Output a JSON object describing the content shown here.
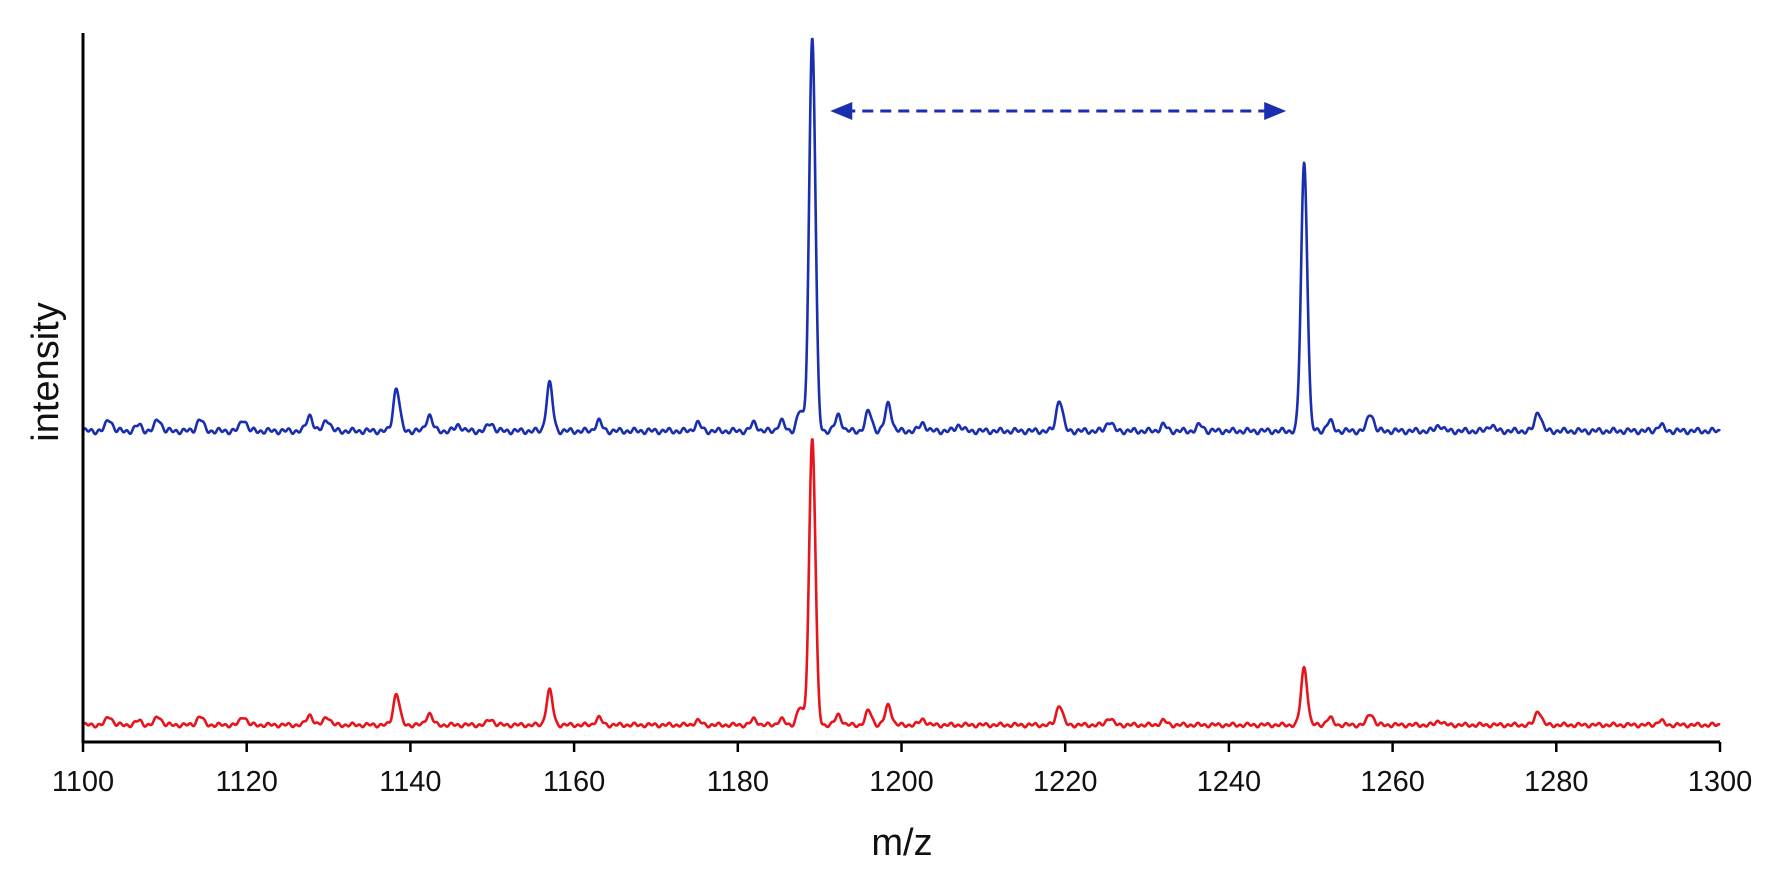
{
  "chart_data": {
    "type": "line",
    "title": "",
    "xlabel": "m/z",
    "ylabel": "intensity",
    "xlim": [
      1100,
      1300
    ],
    "x_ticks": [
      1100,
      1120,
      1140,
      1160,
      1180,
      1200,
      1220,
      1240,
      1260,
      1280,
      1300
    ],
    "y_ticks_shown": false,
    "grid": false,
    "legend": "none",
    "series": [
      {
        "color": "#1a2fb0",
        "baseline": 0,
        "peaks": [
          {
            "x": 1103.2,
            "y": 3
          },
          {
            "x": 1106.8,
            "y": 1.5
          },
          {
            "x": 1109.2,
            "y": 3
          },
          {
            "x": 1114.3,
            "y": 3
          },
          {
            "x": 1119.6,
            "y": 3
          },
          {
            "x": 1127.7,
            "y": 4
          },
          {
            "x": 1129.8,
            "y": 3
          },
          {
            "x": 1138.3,
            "y": 11
          },
          {
            "x": 1142.3,
            "y": 4
          },
          {
            "x": 1145.9,
            "y": 1.5
          },
          {
            "x": 1149.8,
            "y": 2
          },
          {
            "x": 1157.0,
            "y": 12
          },
          {
            "x": 1163.0,
            "y": 2.5
          },
          {
            "x": 1175.1,
            "y": 2
          },
          {
            "x": 1182.0,
            "y": 2
          },
          {
            "x": 1185.3,
            "y": 2.5
          },
          {
            "x": 1187.6,
            "y": 5
          },
          {
            "x": 1189.1,
            "y": 100
          },
          {
            "x": 1192.3,
            "y": 4
          },
          {
            "x": 1196.0,
            "y": 5
          },
          {
            "x": 1198.4,
            "y": 7
          },
          {
            "x": 1202.6,
            "y": 2
          },
          {
            "x": 1207.0,
            "y": 1.5
          },
          {
            "x": 1219.3,
            "y": 8
          },
          {
            "x": 1225.4,
            "y": 2.5
          },
          {
            "x": 1232.0,
            "y": 1.5
          },
          {
            "x": 1236.5,
            "y": 1.5
          },
          {
            "x": 1249.2,
            "y": 68
          },
          {
            "x": 1252.3,
            "y": 2.5
          },
          {
            "x": 1257.3,
            "y": 4.5
          },
          {
            "x": 1265.7,
            "y": 1.5
          },
          {
            "x": 1272.0,
            "y": 1.5
          },
          {
            "x": 1277.8,
            "y": 5
          },
          {
            "x": 1292.7,
            "y": 1.5
          }
        ]
      },
      {
        "color": "#e8141c",
        "baseline": 0,
        "peaks": [
          {
            "x": 1103.2,
            "y": 3
          },
          {
            "x": 1106.8,
            "y": 1.5
          },
          {
            "x": 1109.2,
            "y": 3
          },
          {
            "x": 1114.3,
            "y": 3
          },
          {
            "x": 1119.6,
            "y": 3
          },
          {
            "x": 1127.7,
            "y": 3.5
          },
          {
            "x": 1129.8,
            "y": 3
          },
          {
            "x": 1138.3,
            "y": 11
          },
          {
            "x": 1142.3,
            "y": 4
          },
          {
            "x": 1149.8,
            "y": 2
          },
          {
            "x": 1157.0,
            "y": 12
          },
          {
            "x": 1163.0,
            "y": 2.5
          },
          {
            "x": 1175.1,
            "y": 1.5
          },
          {
            "x": 1182.0,
            "y": 2
          },
          {
            "x": 1185.3,
            "y": 2
          },
          {
            "x": 1187.6,
            "y": 6
          },
          {
            "x": 1189.1,
            "y": 100
          },
          {
            "x": 1192.3,
            "y": 3.5
          },
          {
            "x": 1196.0,
            "y": 5
          },
          {
            "x": 1198.4,
            "y": 7
          },
          {
            "x": 1202.6,
            "y": 2
          },
          {
            "x": 1219.3,
            "y": 7
          },
          {
            "x": 1225.4,
            "y": 2.5
          },
          {
            "x": 1232.0,
            "y": 1.5
          },
          {
            "x": 1249.2,
            "y": 20
          },
          {
            "x": 1252.3,
            "y": 2.5
          },
          {
            "x": 1257.3,
            "y": 4
          },
          {
            "x": 1265.7,
            "y": 1.5
          },
          {
            "x": 1277.8,
            "y": 5
          },
          {
            "x": 1292.7,
            "y": 1.5
          }
        ]
      }
    ],
    "annotations": [
      {
        "type": "double-arrow",
        "style": "dashed",
        "color": "#1a2fb0",
        "x_from": 1189.1,
        "x_to": 1249.2
      }
    ]
  }
}
